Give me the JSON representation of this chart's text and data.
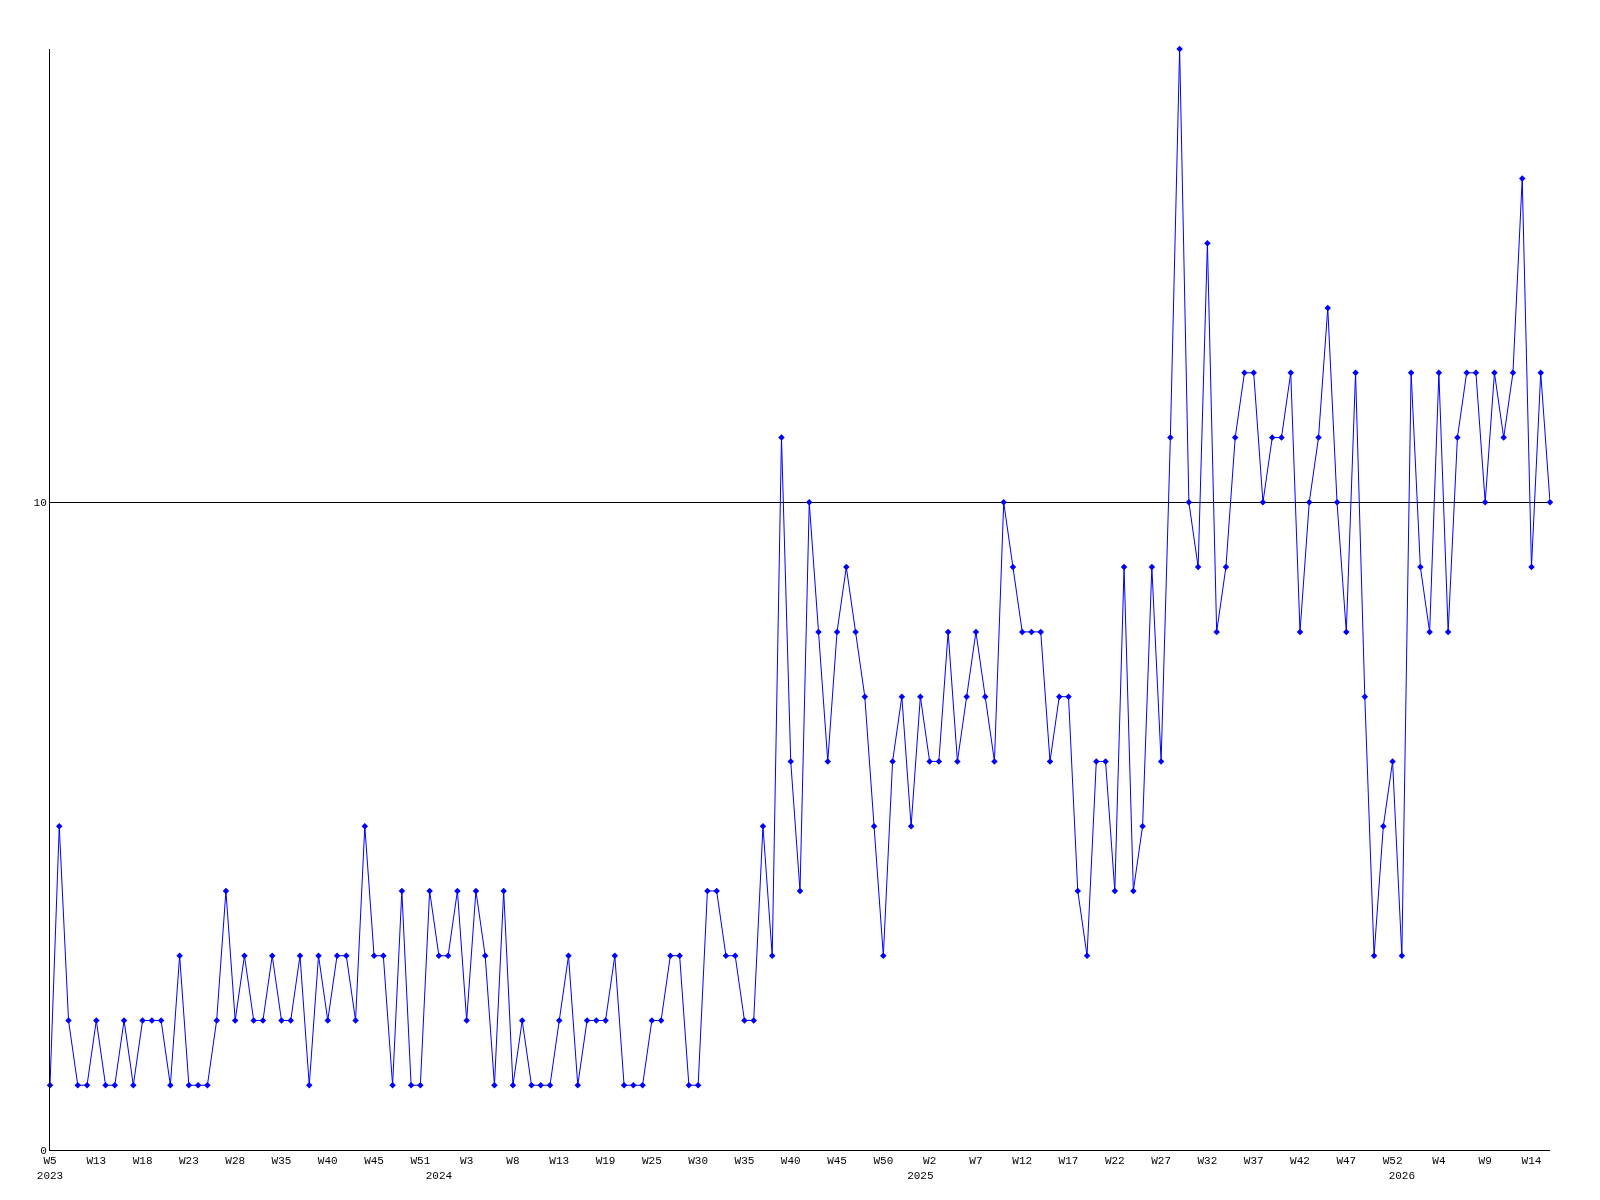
{
  "chart_data": {
    "type": "line",
    "categories": [
      "W5\n2023",
      null,
      null,
      null,
      null,
      "W13",
      null,
      null,
      null,
      null,
      "W18",
      null,
      null,
      null,
      null,
      "W23",
      null,
      null,
      null,
      null,
      "W28",
      null,
      null,
      null,
      null,
      "W35",
      null,
      null,
      null,
      null,
      "W40",
      null,
      null,
      null,
      null,
      "W45",
      null,
      null,
      null,
      null,
      "W51",
      null,
      "\n2024",
      null,
      null,
      "W3",
      null,
      null,
      null,
      null,
      "W8",
      null,
      null,
      null,
      null,
      "W13",
      null,
      null,
      null,
      null,
      "W19",
      null,
      null,
      null,
      null,
      "W25",
      null,
      null,
      null,
      null,
      "W30",
      null,
      null,
      null,
      null,
      "W35",
      null,
      null,
      null,
      null,
      "W40",
      null,
      null,
      null,
      null,
      "W45",
      null,
      null,
      null,
      null,
      "W50",
      null,
      null,
      null,
      "\n2025",
      "W2",
      null,
      null,
      null,
      null,
      "W7",
      null,
      null,
      null,
      null,
      "W12",
      null,
      null,
      null,
      null,
      "W17",
      null,
      null,
      null,
      null,
      "W22",
      null,
      null,
      null,
      null,
      "W27",
      null,
      null,
      null,
      null,
      "W32",
      null,
      null,
      null,
      null,
      "W37",
      null,
      null,
      null,
      null,
      "W42",
      null,
      null,
      null,
      null,
      "W47",
      null,
      null,
      null,
      null,
      "W52",
      "\n2026",
      null,
      null,
      null,
      "W4",
      null,
      null,
      null,
      null,
      "W9",
      null,
      null,
      null,
      null,
      "W14",
      null,
      null
    ],
    "series": [
      {
        "color": "#0000ff",
        "values": [
          1,
          5,
          2,
          1,
          1,
          2,
          1,
          1,
          2,
          1,
          2,
          2,
          2,
          1,
          3,
          1,
          1,
          1,
          2,
          4,
          2,
          3,
          2,
          2,
          3,
          2,
          2,
          3,
          1,
          3,
          2,
          3,
          3,
          2,
          5,
          3,
          3,
          1,
          4,
          1,
          1,
          4,
          3,
          3,
          4,
          2,
          4,
          3,
          1,
          4,
          1,
          2,
          1,
          1,
          1,
          2,
          3,
          1,
          2,
          2,
          2,
          3,
          1,
          1,
          1,
          2,
          2,
          3,
          3,
          1,
          1,
          4,
          4,
          3,
          3,
          2,
          2,
          5,
          3,
          11,
          6,
          4,
          10,
          8,
          6,
          8,
          9,
          8,
          7,
          5,
          3,
          6,
          7,
          5,
          7,
          6,
          6,
          8,
          6,
          7,
          8,
          7,
          6,
          10,
          9,
          8,
          8,
          8,
          6,
          7,
          7,
          4,
          3,
          6,
          6,
          4,
          9,
          4,
          5,
          9,
          6,
          11,
          17,
          10,
          9,
          14,
          8,
          9,
          11,
          12,
          12,
          10,
          11,
          11,
          12,
          8,
          10,
          11,
          13,
          10,
          8,
          12,
          7,
          3,
          5,
          6,
          3,
          12,
          9,
          8,
          12,
          8,
          11,
          12,
          12,
          10,
          12,
          11,
          12,
          15,
          9,
          12,
          10
        ]
      }
    ],
    "ylim": [
      0,
      17
    ],
    "yticks": [
      0,
      10
    ],
    "grid": "y",
    "legend": false,
    "marker": "diamond",
    "line_style": "solid"
  }
}
